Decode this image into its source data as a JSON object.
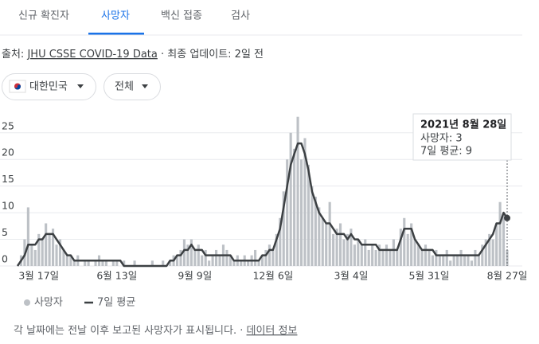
{
  "tabs": [
    "신규 확진자",
    "사망자",
    "백신 접종",
    "검사"
  ],
  "source": {
    "prefix": "출처:",
    "link": "JHU CSSE COVID-19 Data",
    "updated": "· 최종 업데이트: 2일 전"
  },
  "filters": [
    "대한민국",
    "전체"
  ],
  "chart_data": {
    "type": "bar_line",
    "categories": [
      null,
      null,
      null,
      null,
      null,
      null,
      "3월 17일",
      null,
      null,
      null,
      null,
      null,
      null,
      null,
      null,
      null,
      null,
      null,
      null,
      null,
      null,
      null,
      null,
      null,
      null,
      null,
      null,
      null,
      "6월 13일",
      null,
      null,
      null,
      null,
      null,
      null,
      null,
      null,
      null,
      null,
      null,
      null,
      null,
      null,
      null,
      null,
      null,
      null,
      null,
      null,
      null,
      "9월 9일",
      null,
      null,
      null,
      null,
      null,
      null,
      null,
      null,
      null,
      null,
      null,
      null,
      null,
      null,
      null,
      null,
      null,
      null,
      null,
      null,
      null,
      "12월 6일",
      null,
      null,
      null,
      null,
      null,
      null,
      null,
      null,
      null,
      null,
      null,
      null,
      null,
      null,
      null,
      null,
      null,
      null,
      null,
      null,
      null,
      "3월 4일",
      null,
      null,
      null,
      null,
      null,
      null,
      null,
      null,
      null,
      null,
      null,
      null,
      null,
      null,
      null,
      null,
      null,
      null,
      null,
      null,
      null,
      "5월 31일",
      null,
      null,
      null,
      null,
      null,
      null,
      null,
      null,
      null,
      null,
      null,
      null,
      null,
      null,
      null,
      null,
      null,
      null,
      null,
      null,
      null,
      "8월 27일"
    ],
    "series": [
      {
        "name": "사망자",
        "type": "bar",
        "color": "#bdc1c6",
        "values": [
          0,
          2,
          5,
          11,
          4,
          3,
          6,
          5,
          8,
          6,
          7,
          4,
          5,
          3,
          2,
          2,
          1,
          2,
          0,
          1,
          1,
          0,
          1,
          2,
          1,
          1,
          0,
          1,
          1,
          0,
          1,
          0,
          0,
          1,
          0,
          0,
          0,
          0,
          1,
          0,
          0,
          1,
          0,
          1,
          2,
          2,
          3,
          5,
          4,
          5,
          3,
          4,
          2,
          3,
          1,
          2,
          3,
          2,
          4,
          3,
          2,
          1,
          2,
          1,
          2,
          1,
          2,
          3,
          1,
          2,
          3,
          4,
          3,
          6,
          9,
          14,
          20,
          25,
          22,
          28,
          20,
          24,
          19,
          15,
          13,
          11,
          9,
          8,
          12,
          6,
          7,
          8,
          5,
          6,
          7,
          4,
          5,
          4,
          5,
          3,
          4,
          3,
          4,
          3,
          4,
          3,
          5,
          3,
          7,
          9,
          6,
          8,
          5,
          4,
          3,
          4,
          3,
          2,
          3,
          2,
          2,
          3,
          1,
          2,
          2,
          3,
          2,
          2,
          1,
          3,
          2,
          4,
          5,
          6,
          5,
          8,
          12,
          10,
          3
        ]
      },
      {
        "name": "7일 평균",
        "type": "line",
        "color": "#3c4043",
        "values": [
          0,
          1,
          2,
          4,
          4,
          4,
          5,
          5,
          6,
          6,
          6,
          5,
          4,
          3,
          2,
          2,
          1,
          1,
          1,
          1,
          1,
          1,
          1,
          1,
          1,
          1,
          1,
          1,
          1,
          1,
          0,
          0,
          0,
          0,
          0,
          0,
          0,
          0,
          0,
          0,
          0,
          0,
          0,
          1,
          1,
          2,
          2,
          3,
          3,
          4,
          3,
          3,
          3,
          2,
          2,
          2,
          2,
          2,
          2,
          2,
          2,
          1,
          1,
          1,
          1,
          1,
          1,
          1,
          1,
          2,
          2,
          3,
          3,
          5,
          7,
          11,
          15,
          19,
          21,
          23,
          23,
          21,
          18,
          14,
          12,
          10,
          9,
          8,
          8,
          7,
          6,
          6,
          6,
          5,
          6,
          5,
          5,
          4,
          4,
          4,
          4,
          4,
          3,
          3,
          3,
          3,
          3,
          3,
          5,
          7,
          7,
          7,
          5,
          4,
          3,
          3,
          3,
          3,
          2,
          2,
          2,
          2,
          2,
          2,
          2,
          2,
          2,
          2,
          2,
          2,
          2,
          3,
          4,
          5,
          6,
          8,
          8,
          10,
          9
        ]
      }
    ],
    "ylim": [
      0,
      29
    ],
    "yticks": [
      0,
      5,
      10,
      15,
      20,
      25
    ],
    "grid": true
  },
  "tooltip": {
    "date": "2021년 8월 28일",
    "deaths": "사망자: 3",
    "average": "7일 평균: 9"
  },
  "footer": {
    "note": "각 날짜에는 전날 이후 보고된 사망자가 표시됩니다.",
    "separator": "·",
    "link": "데이터 정보"
  }
}
